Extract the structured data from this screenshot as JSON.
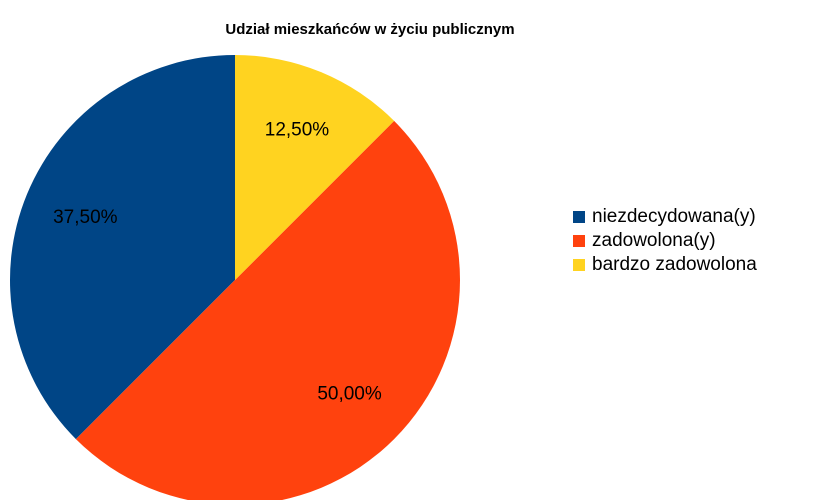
{
  "chart_data": {
    "type": "pie",
    "title": "Udział mieszkańców w życiu publicznym",
    "categories": [
      "niezdecydowana(y)",
      "zadowolona(y)",
      "bardzo zadowolona"
    ],
    "values": [
      37.5,
      50,
      12.5
    ],
    "value_labels": [
      "37,50%",
      "50,00%",
      "12,50%"
    ],
    "colors": [
      "#004586",
      "#ff420e",
      "#ffd320"
    ],
    "legend": "right"
  }
}
